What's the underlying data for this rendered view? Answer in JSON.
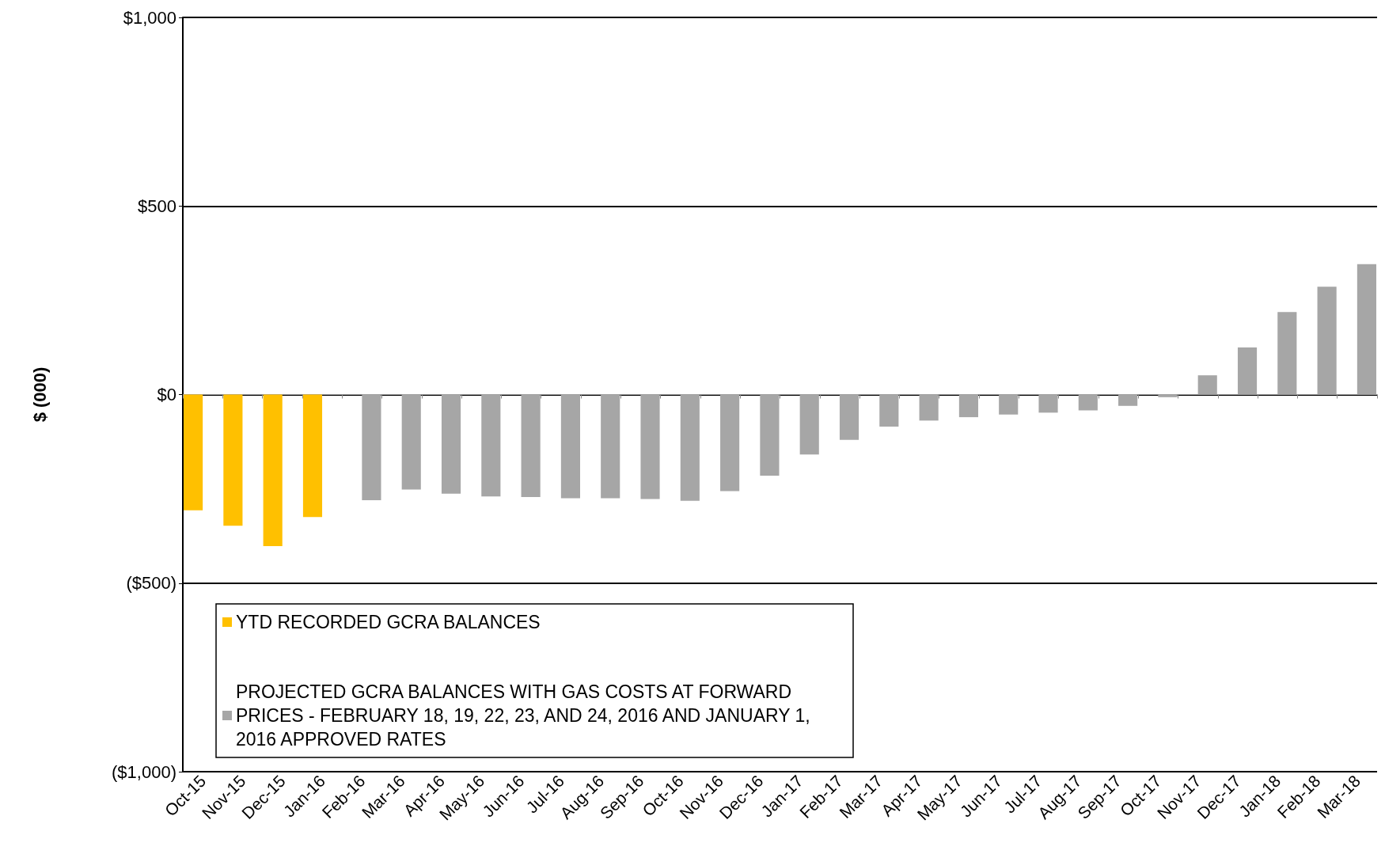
{
  "chart_data": {
    "type": "bar",
    "ylabel": "$ (000)",
    "categories": [
      "Oct-15",
      "Nov-15",
      "Dec-15",
      "Jan-16",
      "Feb-16",
      "Mar-16",
      "Apr-16",
      "May-16",
      "Jun-16",
      "Jul-16",
      "Aug-16",
      "Sep-16",
      "Oct-16",
      "Nov-16",
      "Dec-16",
      "Jan-17",
      "Feb-17",
      "Mar-17",
      "Apr-17",
      "May-17",
      "Jun-17",
      "Jul-17",
      "Aug-17",
      "Sep-17",
      "Oct-17",
      "Nov-17",
      "Dec-17",
      "Jan-18",
      "Feb-18",
      "Mar-18"
    ],
    "series": [
      {
        "name": "YTD RECORDED GCRA BALANCES",
        "color": "#ffc000",
        "values": [
          -307,
          -348,
          -402,
          -325,
          null,
          null,
          null,
          null,
          null,
          null,
          null,
          null,
          null,
          null,
          null,
          null,
          null,
          null,
          null,
          null,
          null,
          null,
          null,
          null,
          null,
          null,
          null,
          null,
          null,
          null
        ]
      },
      {
        "name": "PROJECTED GCRA BALANCES WITH GAS COSTS AT FORWARD PRICES - FEBRUARY 18, 19, 22, 23, AND 24, 2016 AND JANUARY 1, 2016 APPROVED RATES",
        "color": "#a6a6a6",
        "values": [
          null,
          null,
          null,
          null,
          -280,
          -252,
          -263,
          -270,
          -272,
          -275,
          -275,
          -277,
          -282,
          -256,
          -215,
          -159,
          -120,
          -85,
          -69,
          -60,
          -53,
          -48,
          -42,
          -30,
          -7,
          51,
          125,
          219,
          286,
          346
        ]
      }
    ],
    "ylim": [
      -1000,
      1000
    ],
    "yticks": [
      {
        "value": -1000,
        "label": "($1,000)"
      },
      {
        "value": -500,
        "label": "($500)"
      },
      {
        "value": 0,
        "label": "$0"
      },
      {
        "value": 500,
        "label": "$500"
      },
      {
        "value": 1000,
        "label": "$1,000"
      }
    ],
    "grid": "y",
    "legend": "bottom left"
  }
}
